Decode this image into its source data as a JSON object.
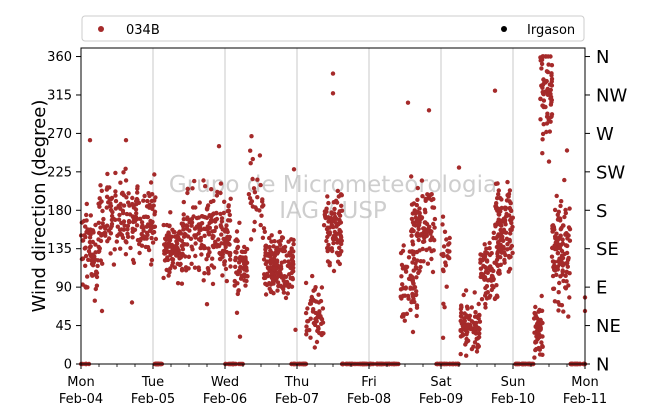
{
  "chart_data": {
    "type": "scatter",
    "ylabel": "Wind direction (degree)",
    "ylim": [
      0,
      370
    ],
    "xlim": [
      "2025-02-04",
      "2025-02-11"
    ],
    "yticks": [
      0,
      45,
      90,
      135,
      180,
      225,
      270,
      315,
      360
    ],
    "x_tick_labels": [
      {
        "day": "Mon",
        "date": "Feb-04"
      },
      {
        "day": "Tue",
        "date": "Feb-05"
      },
      {
        "day": "Wed",
        "date": "Feb-06"
      },
      {
        "day": "Thu",
        "date": "Feb-07"
      },
      {
        "day": "Fri",
        "date": "Feb-08"
      },
      {
        "day": "Sat",
        "date": "Feb-09"
      },
      {
        "day": "Sun",
        "date": "Feb-10"
      },
      {
        "day": "Mon",
        "date": "Feb-11"
      }
    ],
    "compass_labels": [
      "N",
      "NE",
      "E",
      "SE",
      "S",
      "SW",
      "W",
      "NW",
      "N"
    ],
    "grid": "vertical",
    "legend_position": "top",
    "watermark": [
      "Grupo de Micrometeorologia",
      "IAG / USP"
    ],
    "series": [
      {
        "name": "034B",
        "color": "#a52a2a",
        "clusters": [
          {
            "t0": "2025-02-04T00:00",
            "t1": "2025-02-04T06:00",
            "yc": 130,
            "ys": 25,
            "n": 70
          },
          {
            "t0": "2025-02-04T06:00",
            "t1": "2025-02-05T01:00",
            "yc": 172,
            "ys": 24,
            "n": 200
          },
          {
            "t0": "2025-02-05T03:30",
            "t1": "2025-02-05T10:00",
            "yc": 135,
            "ys": 16,
            "n": 95
          },
          {
            "t0": "2025-02-05T10:00",
            "t1": "2025-02-06T02:00",
            "yc": 150,
            "ys": 26,
            "n": 200
          },
          {
            "t0": "2025-02-06T03:00",
            "t1": "2025-02-06T07:30",
            "yc": 120,
            "ys": 18,
            "n": 60
          },
          {
            "t0": "2025-02-06T07:30",
            "t1": "2025-02-06T13:00",
            "yc": 200,
            "ys": 30,
            "n": 30
          },
          {
            "t0": "2025-02-06T13:00",
            "t1": "2025-02-06T23:00",
            "yc": 115,
            "ys": 16,
            "n": 170
          },
          {
            "t0": "2025-02-07T03:00",
            "t1": "2025-02-07T09:00",
            "yc": 62,
            "ys": 18,
            "n": 55
          },
          {
            "t0": "2025-02-07T09:00",
            "t1": "2025-02-07T15:00",
            "yc": 160,
            "ys": 25,
            "n": 90
          },
          {
            "t0": "2025-02-08T10:30",
            "t1": "2025-02-08T16:00",
            "yc": 90,
            "ys": 25,
            "n": 60
          },
          {
            "t0": "2025-02-08T14:00",
            "t1": "2025-02-08T22:00",
            "yc": 160,
            "ys": 26,
            "n": 110
          },
          {
            "t0": "2025-02-09T00:00",
            "t1": "2025-02-09T03:00",
            "yc": 110,
            "ys": 30,
            "n": 25
          },
          {
            "t0": "2025-02-09T06:30",
            "t1": "2025-02-09T13:00",
            "yc": 45,
            "ys": 14,
            "n": 95
          },
          {
            "t0": "2025-02-09T13:00",
            "t1": "2025-02-09T20:00",
            "yc": 110,
            "ys": 18,
            "n": 90
          },
          {
            "t0": "2025-02-09T18:00",
            "t1": "2025-02-10T00:00",
            "yc": 165,
            "ys": 24,
            "n": 110
          },
          {
            "t0": "2025-02-10T07:00",
            "t1": "2025-02-10T10:00",
            "yc": 35,
            "ys": 18,
            "n": 55
          },
          {
            "t0": "2025-02-10T09:00",
            "t1": "2025-02-10T13:00",
            "yc": 320,
            "ys": 28,
            "n": 70
          },
          {
            "t0": "2025-02-10T13:00",
            "t1": "2025-02-10T19:00",
            "yc": 130,
            "ys": 30,
            "n": 120
          },
          {
            "t0": "2025-02-04T00:00",
            "t1": "2025-02-04T03:00",
            "yc": 0,
            "ys": 0,
            "n": 6
          },
          {
            "t0": "2025-02-05T00:30",
            "t1": "2025-02-05T03:00",
            "yc": 0,
            "ys": 0,
            "n": 30
          },
          {
            "t0": "2025-02-06T00:00",
            "t1": "2025-02-06T06:00",
            "yc": 0,
            "ys": 0,
            "n": 20
          },
          {
            "t0": "2025-02-06T22:00",
            "t1": "2025-02-07T03:00",
            "yc": 0,
            "ys": 0,
            "n": 30
          },
          {
            "t0": "2025-02-07T15:00",
            "t1": "2025-02-08T10:00",
            "yc": 0,
            "ys": 0,
            "n": 100
          },
          {
            "t0": "2025-02-08T22:00",
            "t1": "2025-02-09T06:00",
            "yc": 0,
            "ys": 0,
            "n": 40
          },
          {
            "t0": "2025-02-10T00:00",
            "t1": "2025-02-10T07:00",
            "yc": 0,
            "ys": 0,
            "n": 40
          },
          {
            "t0": "2025-02-10T19:00",
            "t1": "2025-02-11T00:00",
            "yc": 0,
            "ys": 0,
            "n": 30
          }
        ],
        "outliers": [
          {
            "x": "2025-02-04T03:00",
            "y": 262
          },
          {
            "x": "2025-02-04T15:00",
            "y": 262
          },
          {
            "x": "2025-02-04T07:00",
            "y": 62
          },
          {
            "x": "2025-02-04T17:00",
            "y": 72
          },
          {
            "x": "2025-02-05T22:00",
            "y": 255
          },
          {
            "x": "2025-02-05T18:00",
            "y": 70
          },
          {
            "x": "2025-02-06T05:00",
            "y": 32
          },
          {
            "x": "2025-02-06T04:00",
            "y": 60
          },
          {
            "x": "2025-02-06T23:00",
            "y": 228
          },
          {
            "x": "2025-02-06T23:30",
            "y": 40
          },
          {
            "x": "2025-02-07T12:00",
            "y": 340
          },
          {
            "x": "2025-02-07T12:00",
            "y": 317
          },
          {
            "x": "2025-02-08T13:00",
            "y": 306
          },
          {
            "x": "2025-02-08T20:00",
            "y": 297
          },
          {
            "x": "2025-02-09T06:00",
            "y": 230
          },
          {
            "x": "2025-02-09T18:00",
            "y": 320
          },
          {
            "x": "2025-02-10T18:00",
            "y": 250
          },
          {
            "x": "2025-02-10T12:00",
            "y": 237
          },
          {
            "x": "2025-02-11T00:00",
            "y": 62
          },
          {
            "x": "2025-02-11T00:00",
            "y": 78
          }
        ]
      },
      {
        "name": "Irgason",
        "color": "#000000",
        "points": []
      }
    ]
  }
}
